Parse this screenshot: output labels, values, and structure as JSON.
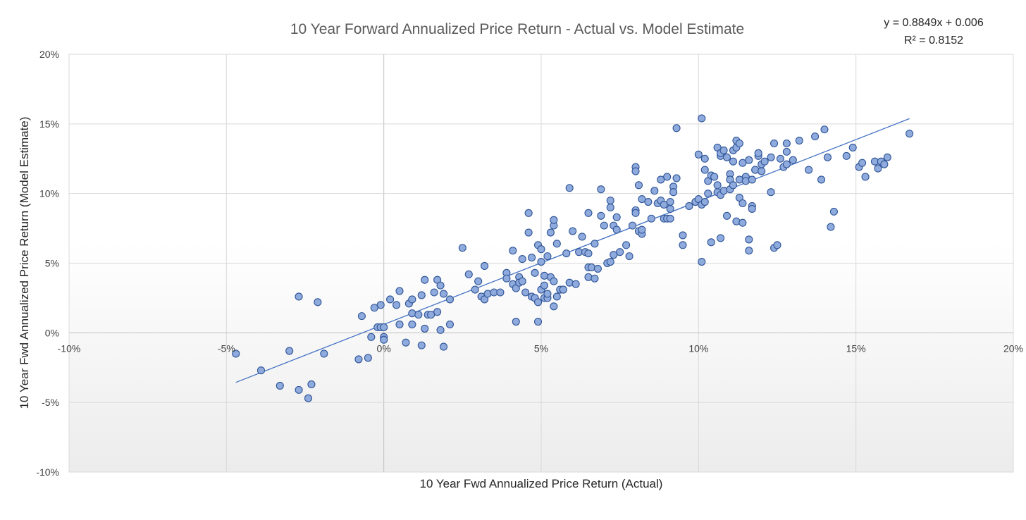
{
  "chart_data": {
    "type": "scatter",
    "title": "10 Year Forward Annualized Price Return - Actual vs. Model Estimate",
    "xlabel": "10 Year Fwd Annualized Price Return (Actual)",
    "ylabel": "10 Year Fwd Annualized Price Return (Model Estimate)",
    "xlim": [
      -0.1,
      0.2
    ],
    "ylim": [
      -0.1,
      0.2
    ],
    "x_ticks": [
      -0.1,
      -0.05,
      0,
      0.05,
      0.1,
      0.15,
      0.2
    ],
    "y_ticks": [
      -0.1,
      -0.05,
      0,
      0.05,
      0.1,
      0.15,
      0.2
    ],
    "x_tick_labels": [
      "-10%",
      "-5%",
      "0%",
      "5%",
      "10%",
      "15%",
      "20%"
    ],
    "y_tick_labels": [
      "-10%",
      "-5%",
      "0%",
      "5%",
      "10%",
      "15%",
      "20%"
    ],
    "grid": true,
    "colors": {
      "point_fill": "#8faadc",
      "point_stroke": "#2f5597",
      "trendline": "#4472c4",
      "grid": "#d9d9d9",
      "axis": "#bfbfbf"
    },
    "trendline": {
      "slope": 0.8849,
      "intercept": 0.006,
      "x_range": [
        -0.047,
        0.167
      ],
      "equation_label": "y = 0.8849x + 0.006",
      "r2_label": "R² = 0.8152"
    },
    "series": [
      {
        "points": [
          [
            -0.047,
            -0.015
          ],
          [
            -0.039,
            -0.027
          ],
          [
            -0.033,
            -0.038
          ],
          [
            -0.03,
            -0.013
          ],
          [
            -0.027,
            0.026
          ],
          [
            -0.027,
            -0.041
          ],
          [
            -0.024,
            -0.047
          ],
          [
            -0.023,
            -0.037
          ],
          [
            -0.021,
            0.022
          ],
          [
            -0.019,
            -0.015
          ],
          [
            -0.008,
            -0.019
          ],
          [
            -0.007,
            0.012
          ],
          [
            -0.005,
            -0.018
          ],
          [
            -0.004,
            -0.003
          ],
          [
            -0.003,
            0.018
          ],
          [
            -0.002,
            0.004
          ],
          [
            -0.001,
            0.004
          ],
          [
            -0.001,
            0.02
          ],
          [
            0.0,
            0.004
          ],
          [
            0.0,
            -0.003
          ],
          [
            0.0,
            -0.005
          ],
          [
            0.002,
            0.024
          ],
          [
            0.004,
            0.02
          ],
          [
            0.005,
            0.03
          ],
          [
            0.005,
            0.006
          ],
          [
            0.007,
            -0.007
          ],
          [
            0.008,
            0.021
          ],
          [
            0.009,
            0.024
          ],
          [
            0.009,
            0.014
          ],
          [
            0.009,
            0.006
          ],
          [
            0.011,
            0.013
          ],
          [
            0.012,
            -0.009
          ],
          [
            0.012,
            0.027
          ],
          [
            0.013,
            0.038
          ],
          [
            0.013,
            0.003
          ],
          [
            0.014,
            0.013
          ],
          [
            0.015,
            0.013
          ],
          [
            0.016,
            0.029
          ],
          [
            0.017,
            0.015
          ],
          [
            0.017,
            0.038
          ],
          [
            0.018,
            0.034
          ],
          [
            0.018,
            0.002
          ],
          [
            0.019,
            -0.01
          ],
          [
            0.019,
            0.028
          ],
          [
            0.021,
            0.024
          ],
          [
            0.021,
            0.006
          ],
          [
            0.025,
            0.061
          ],
          [
            0.027,
            0.042
          ],
          [
            0.029,
            0.031
          ],
          [
            0.03,
            0.037
          ],
          [
            0.031,
            0.026
          ],
          [
            0.032,
            0.024
          ],
          [
            0.032,
            0.048
          ],
          [
            0.033,
            0.028
          ],
          [
            0.035,
            0.029
          ],
          [
            0.037,
            0.029
          ],
          [
            0.039,
            0.043
          ],
          [
            0.039,
            0.039
          ],
          [
            0.041,
            0.059
          ],
          [
            0.041,
            0.035
          ],
          [
            0.042,
            0.008
          ],
          [
            0.042,
            0.032
          ],
          [
            0.043,
            0.04
          ],
          [
            0.043,
            0.036
          ],
          [
            0.044,
            0.053
          ],
          [
            0.044,
            0.037
          ],
          [
            0.045,
            0.029
          ],
          [
            0.046,
            0.086
          ],
          [
            0.046,
            0.072
          ],
          [
            0.047,
            0.054
          ],
          [
            0.047,
            0.026
          ],
          [
            0.048,
            0.025
          ],
          [
            0.048,
            0.043
          ],
          [
            0.049,
            0.008
          ],
          [
            0.049,
            0.063
          ],
          [
            0.049,
            0.022
          ],
          [
            0.05,
            0.031
          ],
          [
            0.05,
            0.051
          ],
          [
            0.05,
            0.06
          ],
          [
            0.051,
            0.041
          ],
          [
            0.051,
            0.034
          ],
          [
            0.051,
            0.025
          ],
          [
            0.052,
            0.025
          ],
          [
            0.052,
            0.028
          ],
          [
            0.052,
            0.055
          ],
          [
            0.053,
            0.04
          ],
          [
            0.053,
            0.072
          ],
          [
            0.054,
            0.077
          ],
          [
            0.054,
            0.081
          ],
          [
            0.054,
            0.037
          ],
          [
            0.054,
            0.019
          ],
          [
            0.055,
            0.026
          ],
          [
            0.055,
            0.064
          ],
          [
            0.056,
            0.031
          ],
          [
            0.057,
            0.031
          ],
          [
            0.057,
            0.031
          ],
          [
            0.058,
            0.057
          ],
          [
            0.059,
            0.036
          ],
          [
            0.059,
            0.104
          ],
          [
            0.06,
            0.073
          ],
          [
            0.061,
            0.035
          ],
          [
            0.062,
            0.058
          ],
          [
            0.063,
            0.069
          ],
          [
            0.064,
            0.058
          ],
          [
            0.065,
            0.047
          ],
          [
            0.065,
            0.04
          ],
          [
            0.065,
            0.057
          ],
          [
            0.065,
            0.086
          ],
          [
            0.066,
            0.047
          ],
          [
            0.067,
            0.064
          ],
          [
            0.067,
            0.039
          ],
          [
            0.068,
            0.046
          ],
          [
            0.069,
            0.103
          ],
          [
            0.069,
            0.084
          ],
          [
            0.07,
            0.077
          ],
          [
            0.071,
            0.05
          ],
          [
            0.072,
            0.051
          ],
          [
            0.072,
            0.095
          ],
          [
            0.072,
            0.09
          ],
          [
            0.073,
            0.077
          ],
          [
            0.073,
            0.056
          ],
          [
            0.074,
            0.074
          ],
          [
            0.074,
            0.083
          ],
          [
            0.075,
            0.058
          ],
          [
            0.077,
            0.063
          ],
          [
            0.078,
            0.055
          ],
          [
            0.079,
            0.077
          ],
          [
            0.08,
            0.088
          ],
          [
            0.08,
            0.086
          ],
          [
            0.08,
            0.119
          ],
          [
            0.08,
            0.116
          ],
          [
            0.081,
            0.073
          ],
          [
            0.081,
            0.106
          ],
          [
            0.082,
            0.071
          ],
          [
            0.082,
            0.096
          ],
          [
            0.082,
            0.074
          ],
          [
            0.084,
            0.094
          ],
          [
            0.085,
            0.082
          ],
          [
            0.086,
            0.102
          ],
          [
            0.087,
            0.093
          ],
          [
            0.088,
            0.11
          ],
          [
            0.088,
            0.095
          ],
          [
            0.089,
            0.082
          ],
          [
            0.089,
            0.092
          ],
          [
            0.09,
            0.112
          ],
          [
            0.09,
            0.082
          ],
          [
            0.091,
            0.094
          ],
          [
            0.091,
            0.089
          ],
          [
            0.091,
            0.082
          ],
          [
            0.092,
            0.105
          ],
          [
            0.092,
            0.101
          ],
          [
            0.093,
            0.111
          ],
          [
            0.093,
            0.147
          ],
          [
            0.095,
            0.063
          ],
          [
            0.095,
            0.07
          ],
          [
            0.097,
            0.091
          ],
          [
            0.099,
            0.094
          ],
          [
            0.1,
            0.128
          ],
          [
            0.1,
            0.096
          ],
          [
            0.101,
            0.154
          ],
          [
            0.101,
            0.051
          ],
          [
            0.101,
            0.092
          ],
          [
            0.102,
            0.117
          ],
          [
            0.102,
            0.094
          ],
          [
            0.102,
            0.125
          ],
          [
            0.103,
            0.1
          ],
          [
            0.103,
            0.109
          ],
          [
            0.104,
            0.113
          ],
          [
            0.104,
            0.065
          ],
          [
            0.105,
            0.112
          ],
          [
            0.106,
            0.133
          ],
          [
            0.106,
            0.101
          ],
          [
            0.106,
            0.106
          ],
          [
            0.107,
            0.127
          ],
          [
            0.107,
            0.129
          ],
          [
            0.107,
            0.099
          ],
          [
            0.107,
            0.068
          ],
          [
            0.108,
            0.131
          ],
          [
            0.108,
            0.102
          ],
          [
            0.109,
            0.126
          ],
          [
            0.109,
            0.084
          ],
          [
            0.11,
            0.114
          ],
          [
            0.11,
            0.11
          ],
          [
            0.11,
            0.103
          ],
          [
            0.111,
            0.106
          ],
          [
            0.111,
            0.123
          ],
          [
            0.111,
            0.131
          ],
          [
            0.112,
            0.133
          ],
          [
            0.112,
            0.138
          ],
          [
            0.112,
            0.08
          ],
          [
            0.113,
            0.097
          ],
          [
            0.113,
            0.11
          ],
          [
            0.113,
            0.136
          ],
          [
            0.114,
            0.079
          ],
          [
            0.114,
            0.093
          ],
          [
            0.114,
            0.122
          ],
          [
            0.115,
            0.112
          ],
          [
            0.115,
            0.109
          ],
          [
            0.116,
            0.124
          ],
          [
            0.116,
            0.067
          ],
          [
            0.116,
            0.059
          ],
          [
            0.117,
            0.091
          ],
          [
            0.117,
            0.089
          ],
          [
            0.117,
            0.11
          ],
          [
            0.118,
            0.117
          ],
          [
            0.118,
            0.117
          ],
          [
            0.119,
            0.127
          ],
          [
            0.119,
            0.129
          ],
          [
            0.12,
            0.116
          ],
          [
            0.12,
            0.121
          ],
          [
            0.121,
            0.123
          ],
          [
            0.123,
            0.101
          ],
          [
            0.123,
            0.126
          ],
          [
            0.124,
            0.136
          ],
          [
            0.124,
            0.061
          ],
          [
            0.125,
            0.063
          ],
          [
            0.126,
            0.125
          ],
          [
            0.127,
            0.119
          ],
          [
            0.128,
            0.121
          ],
          [
            0.128,
            0.136
          ],
          [
            0.128,
            0.13
          ],
          [
            0.13,
            0.124
          ],
          [
            0.132,
            0.138
          ],
          [
            0.135,
            0.117
          ],
          [
            0.137,
            0.141
          ],
          [
            0.139,
            0.11
          ],
          [
            0.14,
            0.146
          ],
          [
            0.141,
            0.126
          ],
          [
            0.142,
            0.076
          ],
          [
            0.143,
            0.087
          ],
          [
            0.147,
            0.127
          ],
          [
            0.149,
            0.133
          ],
          [
            0.151,
            0.119
          ],
          [
            0.152,
            0.122
          ],
          [
            0.153,
            0.112
          ],
          [
            0.156,
            0.123
          ],
          [
            0.157,
            0.118
          ],
          [
            0.158,
            0.123
          ],
          [
            0.159,
            0.121
          ],
          [
            0.16,
            0.126
          ],
          [
            0.167,
            0.143
          ]
        ]
      }
    ]
  }
}
